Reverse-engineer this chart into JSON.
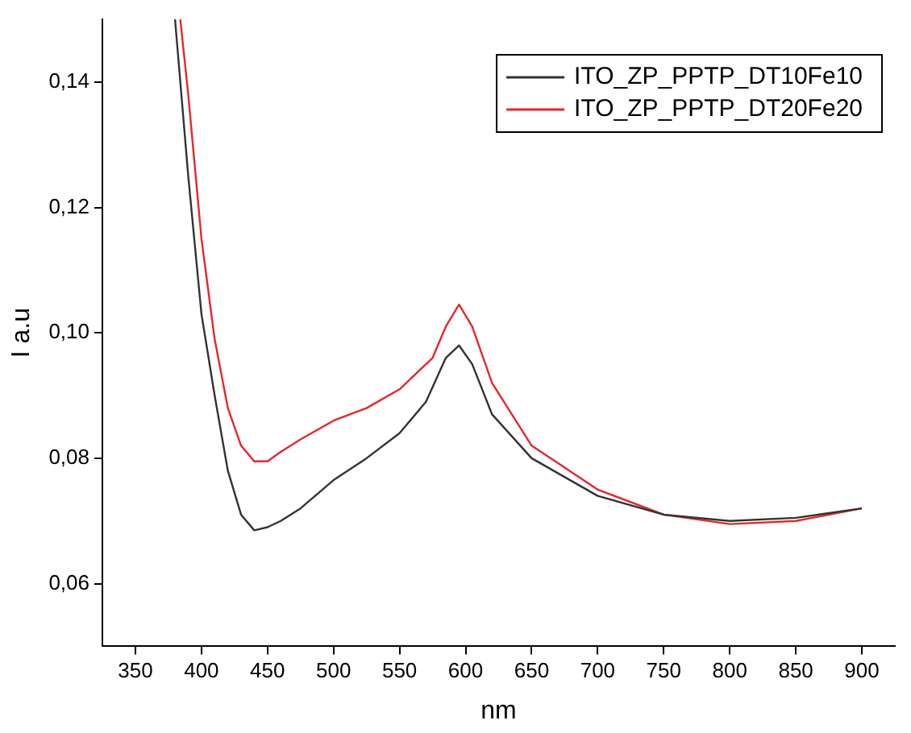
{
  "chart_data": {
    "type": "line",
    "xlabel": "nm",
    "ylabel": "I a.u",
    "xlim": [
      325,
      925
    ],
    "ylim": [
      0.05,
      0.15
    ],
    "xticks": [
      350,
      400,
      450,
      500,
      550,
      600,
      650,
      700,
      750,
      800,
      850,
      900
    ],
    "yticks": [
      {
        "value": 0.06,
        "label": "0,06"
      },
      {
        "value": 0.08,
        "label": "0,08"
      },
      {
        "value": 0.1,
        "label": "0,10"
      },
      {
        "value": 0.12,
        "label": "0,12"
      },
      {
        "value": 0.14,
        "label": "0,14"
      }
    ],
    "grid": false,
    "legend": "top right",
    "marker": "none",
    "line_style": "solid",
    "series": [
      {
        "name": "ITO_ZP_PPTP_DT10Fe10",
        "color": "#333333",
        "x": [
          380,
          390,
          400,
          410,
          420,
          430,
          440,
          450,
          460,
          475,
          500,
          525,
          550,
          570,
          585,
          595,
          605,
          620,
          650,
          700,
          750,
          800,
          850,
          900
        ],
        "values": [
          0.15,
          0.125,
          0.103,
          0.09,
          0.078,
          0.071,
          0.0685,
          0.069,
          0.07,
          0.072,
          0.0765,
          0.08,
          0.084,
          0.089,
          0.096,
          0.098,
          0.095,
          0.087,
          0.08,
          0.074,
          0.071,
          0.07,
          0.0705,
          0.072
        ]
      },
      {
        "name": "ITO_ZP_PPTP_DT20Fe20",
        "color": "#e8262a",
        "x": [
          384,
          390,
          400,
          410,
          420,
          430,
          440,
          450,
          460,
          475,
          500,
          525,
          550,
          575,
          585,
          595,
          605,
          620,
          650,
          700,
          750,
          800,
          850,
          900
        ],
        "values": [
          0.15,
          0.138,
          0.115,
          0.099,
          0.088,
          0.082,
          0.0795,
          0.0795,
          0.081,
          0.083,
          0.086,
          0.088,
          0.091,
          0.096,
          0.101,
          0.1045,
          0.101,
          0.092,
          0.082,
          0.075,
          0.071,
          0.0695,
          0.07,
          0.072
        ]
      }
    ]
  }
}
